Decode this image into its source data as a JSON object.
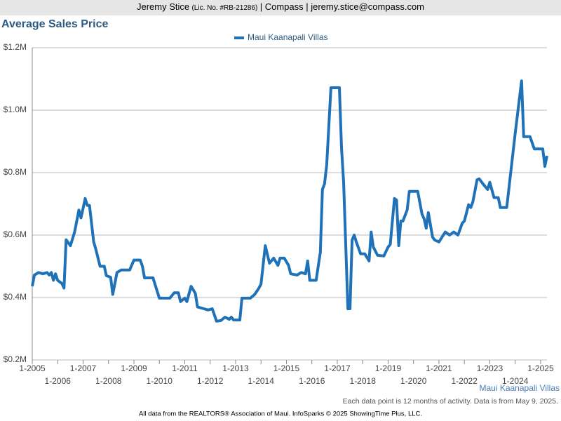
{
  "header": {
    "name": "Jeremy Stice",
    "license": "(Lic. No. #RB-21286)",
    "text": "| Compass | jeremy.stice@compass.com"
  },
  "chart_data": {
    "type": "line",
    "title": "Average Sales Price",
    "x": [
      "1-2005",
      "2-2005",
      "4-2005",
      "6-2005",
      "8-2005",
      "9-2005",
      "10-2005",
      "11-2005",
      "12-2005",
      "1-2006",
      "3-2006",
      "4-2006",
      "5-2006",
      "7-2006",
      "9-2006",
      "11-2006",
      "12-2006",
      "2-2007",
      "3-2007",
      "4-2007",
      "6-2007",
      "7-2007",
      "9-2007",
      "11-2007",
      "12-2007",
      "2-2008",
      "3-2008",
      "5-2008",
      "7-2008",
      "11-2008",
      "1-2009",
      "4-2009",
      "5-2009",
      "6-2009",
      "10-2009",
      "1-2010",
      "6-2010",
      "8-2010",
      "10-2010",
      "11-2010",
      "1-2011",
      "2-2011",
      "4-2011",
      "6-2011",
      "7-2011",
      "10-2011",
      "12-2011",
      "2-2012",
      "4-2012",
      "6-2012",
      "8-2012",
      "10-2012",
      "11-2012",
      "12-2012",
      "3-2013",
      "4-2013",
      "8-2013",
      "10-2013",
      "12-2013",
      "1-2014",
      "3-2014",
      "5-2014",
      "7-2014",
      "9-2014",
      "10-2014",
      "12-2014",
      "2-2015",
      "3-2015",
      "6-2015",
      "8-2015",
      "10-2015",
      "11-2015",
      "12-2015",
      "3-2016",
      "5-2016",
      "6-2016",
      "7-2016",
      "8-2016",
      "10-2016",
      "2-2017",
      "3-2017",
      "4-2017",
      "6-2017",
      "7-2017",
      "8-2017",
      "9-2017",
      "10-2017",
      "12-2017",
      "2-2018",
      "4-2018",
      "5-2018",
      "6-2018",
      "8-2018",
      "11-2018",
      "1-2019",
      "2-2019",
      "4-2019",
      "5-2019",
      "6-2019",
      "7-2019",
      "8-2019",
      "10-2019",
      "11-2019",
      "3-2020",
      "5-2020",
      "6-2020",
      "7-2020",
      "8-2020",
      "10-2020",
      "11-2020",
      "1-2021",
      "4-2021",
      "6-2021",
      "8-2021",
      "10-2021",
      "12-2021",
      "1-2022",
      "3-2022",
      "4-2022",
      "5-2022",
      "7-2022",
      "8-2022",
      "10-2022",
      "12-2022",
      "1-2023",
      "3-2023",
      "5-2023",
      "6-2023",
      "9-2023",
      "1-2024",
      "4-2024",
      "5-2024",
      "8-2024",
      "10-2024",
      "2-2025",
      "3-2025",
      "4-2025"
    ],
    "series": [
      {
        "name": "Maui Kaanapali Villas",
        "color": "#1f72b8",
        "values": [
          436000,
          472000,
          480000,
          476000,
          480000,
          472000,
          480000,
          455000,
          476000,
          455000,
          445000,
          430000,
          585000,
          566000,
          610000,
          680000,
          655000,
          717000,
          695000,
          695000,
          578000,
          555000,
          500000,
          500000,
          470000,
          465000,
          410000,
          480000,
          488000,
          488000,
          520000,
          520000,
          500000,
          463000,
          463000,
          398000,
          398000,
          415000,
          415000,
          387000,
          398000,
          387000,
          436000,
          413000,
          370000,
          364000,
          360000,
          364000,
          324000,
          326000,
          337000,
          330000,
          337000,
          328000,
          328000,
          398000,
          398000,
          410000,
          430000,
          443000,
          566000,
          510000,
          526000,
          503000,
          526000,
          526000,
          503000,
          476000,
          472000,
          480000,
          476000,
          517000,
          455000,
          455000,
          545000,
          746000,
          764000,
          825000,
          1072000,
          1072000,
          880000,
          770000,
          364000,
          364000,
          584000,
          600000,
          578000,
          540000,
          540000,
          517000,
          610000,
          562000,
          535000,
          533000,
          562000,
          570000,
          717000,
          712000,
          566000,
          645000,
          645000,
          680000,
          740000,
          740000,
          667000,
          652000,
          622000,
          672000,
          593000,
          584000,
          578000,
          610000,
          600000,
          610000,
          600000,
          638000,
          645000,
          697000,
          688000,
          706000,
          777000,
          780000,
          762000,
          746000,
          769000,
          720000,
          720000,
          688000,
          688000,
          926000,
          1094000,
          915000,
          915000,
          876000,
          876000,
          820000,
          854000
        ]
      }
    ],
    "xlim": [
      "1-2005",
      "4-2025"
    ],
    "xticks": [
      "1-2005",
      "1-2006",
      "1-2007",
      "1-2008",
      "1-2009",
      "1-2010",
      "1-2011",
      "1-2012",
      "1-2013",
      "1-2014",
      "1-2015",
      "1-2016",
      "1-2017",
      "1-2018",
      "1-2019",
      "1-2020",
      "1-2021",
      "1-2022",
      "1-2023",
      "1-2024",
      "1-2025"
    ],
    "ylim": [
      200000,
      1200000
    ],
    "yticks": [
      {
        "value": 200000,
        "label": "$0.2M"
      },
      {
        "value": 400000,
        "label": "$0.4M"
      },
      {
        "value": 600000,
        "label": "$0.6M"
      },
      {
        "value": 800000,
        "label": "$0.8M"
      },
      {
        "value": 1000000,
        "label": "$1.0M"
      },
      {
        "value": 1200000,
        "label": "$1.2M"
      }
    ],
    "grid": true,
    "legend": "top",
    "annotations": [
      "Maui Kaanapali Villas",
      "Each data point is 12 months of activity. Data is from May 9, 2025."
    ]
  },
  "footer": "All data from the REALTORS® Association of Maui. InfoSparks © 2025 ShowingTime Plus, LLC."
}
